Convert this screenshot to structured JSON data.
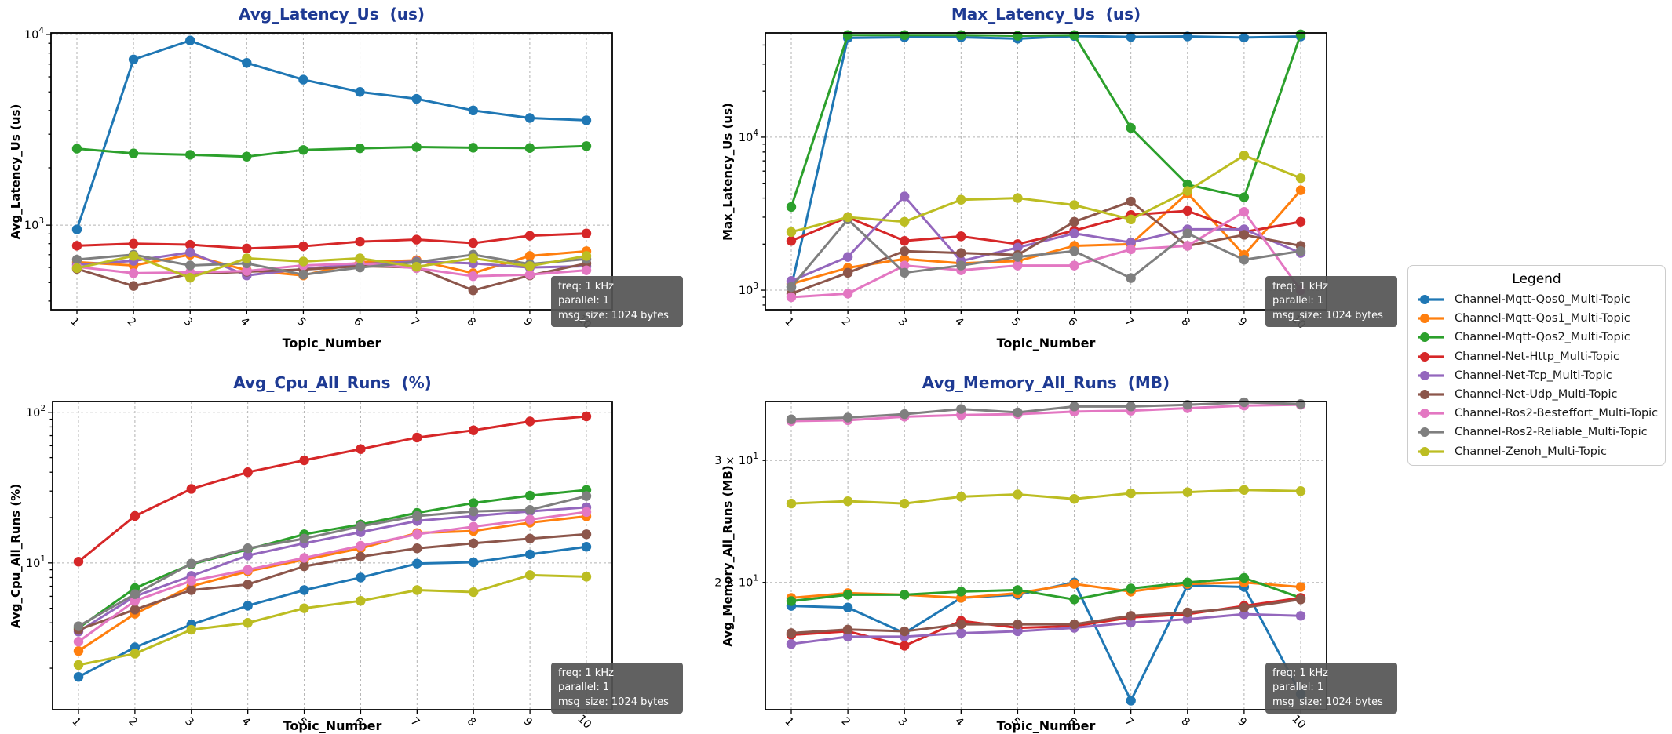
{
  "figure": {
    "background": "#ffffff",
    "title_color": "#1e3a93",
    "annotation": {
      "lines": [
        "freq: 1 kHz",
        "parallel: 1",
        "msg_size: 1024 bytes"
      ],
      "bg": "#555555",
      "text_color": "#ffffff"
    }
  },
  "legend": {
    "title": "Legend",
    "items": [
      {
        "label": "Channel-Mqtt-Qos0_Multi-Topic",
        "color": "#1f77b4"
      },
      {
        "label": "Channel-Mqtt-Qos1_Multi-Topic",
        "color": "#ff7f0e"
      },
      {
        "label": "Channel-Mqtt-Qos2_Multi-Topic",
        "color": "#2ca02c"
      },
      {
        "label": "Channel-Net-Http_Multi-Topic",
        "color": "#d62728"
      },
      {
        "label": "Channel-Net-Tcp_Multi-Topic",
        "color": "#9467bd"
      },
      {
        "label": "Channel-Net-Udp_Multi-Topic",
        "color": "#8c564b"
      },
      {
        "label": "Channel-Ros2-Besteffort_Multi-Topic",
        "color": "#e377c2"
      },
      {
        "label": "Channel-Ros2-Reliable_Multi-Topic",
        "color": "#7f7f7f"
      },
      {
        "label": "Channel-Zenoh_Multi-Topic",
        "color": "#bcbd22"
      }
    ]
  },
  "chart_data": [
    {
      "id": "avg-latency",
      "type": "line",
      "yscale": "log",
      "title": "Avg_Latency_Us  (us)",
      "xlabel": "Topic_Number",
      "ylabel": "Avg_Latency_Us (us)",
      "x": [
        1,
        2,
        3,
        4,
        5,
        6,
        7,
        8,
        9,
        10
      ],
      "ylim": [
        360,
        10200
      ],
      "yticks": [
        {
          "v": 10000,
          "coeff": "",
          "exp": "4"
        },
        {
          "v": 1000,
          "coeff": "",
          "exp": "3"
        }
      ],
      "grid": true,
      "legend_position": "outside-right",
      "series": [
        {
          "name": "Channel-Mqtt-Qos0_Multi-Topic",
          "values": [
            950,
            7400,
            9300,
            7100,
            5800,
            5000,
            4600,
            4000,
            3650,
            3550
          ]
        },
        {
          "name": "Channel-Mqtt-Qos1_Multi-Topic",
          "values": [
            640,
            615,
            700,
            580,
            545,
            640,
            655,
            560,
            690,
            730
          ]
        },
        {
          "name": "Channel-Mqtt-Qos2_Multi-Topic",
          "values": [
            2520,
            2380,
            2340,
            2290,
            2480,
            2530,
            2570,
            2550,
            2540,
            2600
          ]
        },
        {
          "name": "Channel-Net-Http_Multi-Topic",
          "values": [
            780,
            800,
            790,
            755,
            775,
            820,
            840,
            805,
            880,
            905
          ]
        },
        {
          "name": "Channel-Net-Tcp_Multi-Topic",
          "values": [
            620,
            650,
            720,
            545,
            590,
            625,
            645,
            630,
            600,
            610
          ]
        },
        {
          "name": "Channel-Net-Udp_Multi-Topic",
          "values": [
            590,
            480,
            555,
            570,
            585,
            610,
            600,
            455,
            545,
            630
          ]
        },
        {
          "name": "Channel-Ros2-Besteffort_Multi-Topic",
          "values": [
            605,
            560,
            565,
            575,
            615,
            630,
            595,
            540,
            550,
            580
          ]
        },
        {
          "name": "Channel-Ros2-Reliable_Multi-Topic",
          "values": [
            660,
            700,
            615,
            630,
            550,
            600,
            640,
            700,
            625,
            665
          ]
        },
        {
          "name": "Channel-Zenoh_Multi-Topic",
          "values": [
            595,
            690,
            530,
            670,
            645,
            670,
            605,
            670,
            610,
            690
          ]
        }
      ]
    },
    {
      "id": "max-latency",
      "type": "line",
      "yscale": "log",
      "title": "Max_Latency_Us  (us)",
      "xlabel": "Topic_Number",
      "ylabel": "Max_Latency_Us (us)",
      "x": [
        1,
        2,
        3,
        4,
        5,
        6,
        7,
        8,
        9,
        10
      ],
      "ylim": [
        745,
        48000
      ],
      "yticks": [
        {
          "v": 10000,
          "coeff": "",
          "exp": "4"
        },
        {
          "v": 1000,
          "coeff": "",
          "exp": "3"
        }
      ],
      "grid": true,
      "series": [
        {
          "name": "Channel-Mqtt-Qos0_Multi-Topic",
          "values": [
            1050,
            44500,
            45000,
            45000,
            44000,
            45800,
            45200,
            45500,
            44800,
            45500
          ]
        },
        {
          "name": "Channel-Mqtt-Qos1_Multi-Topic",
          "values": [
            1100,
            1400,
            1600,
            1500,
            1550,
            1950,
            2000,
            4300,
            1700,
            4500
          ]
        },
        {
          "name": "Channel-Mqtt-Qos2_Multi-Topic",
          "values": [
            3500,
            46500,
            46500,
            46500,
            46000,
            46500,
            11500,
            4900,
            4050,
            47000
          ]
        },
        {
          "name": "Channel-Net-Http_Multi-Topic",
          "values": [
            2100,
            3000,
            2100,
            2250,
            2000,
            2450,
            3100,
            3300,
            2400,
            2800
          ]
        },
        {
          "name": "Channel-Net-Tcp_Multi-Topic",
          "values": [
            1150,
            1650,
            4100,
            1550,
            1900,
            2350,
            2050,
            2500,
            2500,
            1750
          ]
        },
        {
          "name": "Channel-Net-Udp_Multi-Topic",
          "values": [
            950,
            1300,
            1800,
            1750,
            1700,
            2800,
            3800,
            1950,
            2300,
            1950
          ]
        },
        {
          "name": "Channel-Ros2-Besteffort_Multi-Topic",
          "values": [
            900,
            950,
            1450,
            1350,
            1450,
            1450,
            1850,
            1950,
            3250,
            1000
          ]
        },
        {
          "name": "Channel-Ros2-Reliable_Multi-Topic",
          "values": [
            1050,
            2900,
            1300,
            1450,
            1650,
            1800,
            1200,
            2350,
            1580,
            1800
          ]
        },
        {
          "name": "Channel-Zenoh_Multi-Topic",
          "values": [
            2400,
            3000,
            2800,
            3900,
            4000,
            3600,
            2900,
            4450,
            7600,
            5400
          ]
        }
      ]
    },
    {
      "id": "avg-cpu",
      "type": "line",
      "yscale": "log",
      "title": "Avg_Cpu_All_Runs  (%)",
      "xlabel": "Topic_Number",
      "ylabel": "Avg_Cpu_All_Runs (%)",
      "x": [
        1,
        2,
        3,
        4,
        5,
        6,
        7,
        8,
        9,
        10
      ],
      "ylim": [
        1.06,
        118
      ],
      "yticks": [
        {
          "v": 100,
          "coeff": "",
          "exp": "2"
        },
        {
          "v": 10,
          "coeff": "",
          "exp": "1"
        }
      ],
      "grid": true,
      "series": [
        {
          "name": "Channel-Mqtt-Qos0_Multi-Topic",
          "values": [
            1.75,
            2.75,
            3.9,
            5.2,
            6.6,
            8.0,
            9.9,
            10.1,
            11.4,
            12.8
          ]
        },
        {
          "name": "Channel-Mqtt-Qos1_Multi-Topic",
          "values": [
            2.6,
            4.6,
            7.0,
            8.8,
            10.5,
            12.5,
            15.8,
            16.3,
            18.5,
            20.4
          ]
        },
        {
          "name": "Channel-Mqtt-Qos2_Multi-Topic",
          "values": [
            3.7,
            6.8,
            9.8,
            12.3,
            15.5,
            18.0,
            21.5,
            25.0,
            28.0,
            30.5
          ]
        },
        {
          "name": "Channel-Net-Http_Multi-Topic",
          "values": [
            10.2,
            20.5,
            31,
            40,
            48,
            57,
            68,
            76,
            87,
            94
          ]
        },
        {
          "name": "Channel-Net-Tcp_Multi-Topic",
          "values": [
            3.5,
            6.0,
            8.2,
            11.2,
            13.5,
            16.0,
            19.0,
            20.5,
            22.0,
            23.4
          ]
        },
        {
          "name": "Channel-Net-Udp_Multi-Topic",
          "values": [
            3.6,
            4.9,
            6.6,
            7.2,
            9.5,
            11.0,
            12.5,
            13.5,
            14.5,
            15.5
          ]
        },
        {
          "name": "Channel-Ros2-Besteffort_Multi-Topic",
          "values": [
            3.0,
            5.6,
            7.6,
            9.0,
            10.8,
            13.0,
            15.5,
            17.4,
            19.4,
            21.8
          ]
        },
        {
          "name": "Channel-Ros2-Reliable_Multi-Topic",
          "values": [
            3.8,
            6.2,
            9.9,
            12.5,
            14.5,
            17.5,
            20.5,
            22.0,
            22.5,
            27.8
          ]
        },
        {
          "name": "Channel-Zenoh_Multi-Topic",
          "values": [
            2.1,
            2.5,
            3.6,
            4.0,
            5.0,
            5.6,
            6.6,
            6.4,
            8.3,
            8.1
          ]
        }
      ]
    },
    {
      "id": "avg-memory",
      "type": "line",
      "yscale": "log",
      "title": "Avg_Memory_All_Runs  (MB)",
      "xlabel": "Topic_Number",
      "ylabel": "Avg_Memory_All_Runs (MB)",
      "x": [
        1,
        2,
        3,
        4,
        5,
        6,
        7,
        8,
        9,
        10
      ],
      "ylim": [
        13.1,
        36.5
      ],
      "yticks": [
        {
          "v": 30,
          "coeff": "3 × ",
          "exp": "1"
        },
        {
          "v": 20,
          "coeff": "2 × ",
          "exp": "1"
        }
      ],
      "grid": true,
      "series": [
        {
          "name": "Channel-Mqtt-Qos0_Multi-Topic",
          "values": [
            18.5,
            18.4,
            16.9,
            19.0,
            19.2,
            20.0,
            13.5,
            19.8,
            19.7,
            13.8
          ]
        },
        {
          "name": "Channel-Mqtt-Qos1_Multi-Topic",
          "values": [
            19.0,
            19.3,
            19.2,
            19.0,
            19.3,
            19.9,
            19.4,
            19.9,
            20.0,
            19.7
          ]
        },
        {
          "name": "Channel-Mqtt-Qos2_Multi-Topic",
          "values": [
            18.8,
            19.2,
            19.2,
            19.4,
            19.5,
            18.9,
            19.6,
            20.0,
            20.3,
            19.0
          ]
        },
        {
          "name": "Channel-Net-Http_Multi-Topic",
          "values": [
            16.8,
            17.0,
            16.2,
            17.6,
            17.2,
            17.3,
            17.8,
            18.0,
            18.5,
            19.0
          ]
        },
        {
          "name": "Channel-Net-Tcp_Multi-Topic",
          "values": [
            16.3,
            16.7,
            16.7,
            16.9,
            17.0,
            17.2,
            17.5,
            17.7,
            18.0,
            17.9
          ]
        },
        {
          "name": "Channel-Net-Udp_Multi-Topic",
          "values": [
            16.9,
            17.1,
            17.0,
            17.4,
            17.4,
            17.4,
            17.9,
            18.1,
            18.4,
            18.9
          ]
        },
        {
          "name": "Channel-Ros2-Besteffort_Multi-Topic",
          "values": [
            34.2,
            34.3,
            34.7,
            34.9,
            35.0,
            35.3,
            35.4,
            35.7,
            36.0,
            36.1
          ]
        },
        {
          "name": "Channel-Ros2-Reliable_Multi-Topic",
          "values": [
            34.4,
            34.6,
            35.0,
            35.6,
            35.2,
            35.9,
            35.9,
            36.1,
            36.4,
            36.2
          ]
        },
        {
          "name": "Channel-Zenoh_Multi-Topic",
          "values": [
            26.0,
            26.2,
            26.0,
            26.6,
            26.8,
            26.4,
            26.9,
            27.0,
            27.2,
            27.1
          ]
        }
      ]
    }
  ]
}
